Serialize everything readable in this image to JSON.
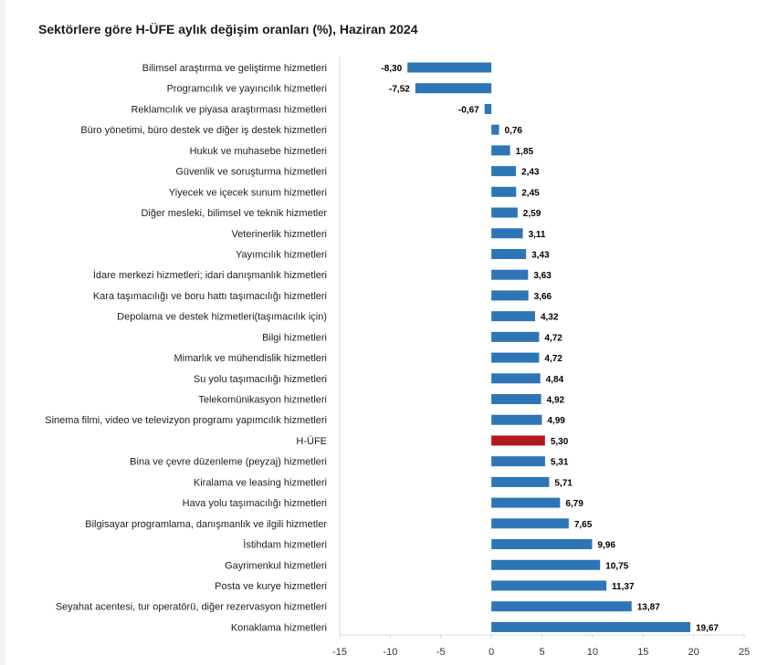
{
  "chart_data": {
    "type": "bar",
    "orientation": "horizontal",
    "title": "Sektörlere göre H-ÜFE aylık değişim oranları (%), Haziran 2024",
    "categories": [
      "Bilimsel araştırma ve geliştirme hizmetleri",
      "Programcılık ve yayıncılık hizmetleri",
      "Reklamcılık ve piyasa araştırması hizmetleri",
      "Büro yönetimi, büro destek ve diğer iş destek hizmetleri",
      "Hukuk ve muhasebe hizmetleri",
      "Güvenlik ve soruşturma hizmetleri",
      "Yiyecek ve içecek sunum hizmetleri",
      "Diğer mesleki, bilimsel ve teknik hizmetler",
      "Veterinerlik hizmetleri",
      "Yayımcılık hizmetleri",
      "İdare merkezi hizmetleri; idari danışmanlık hizmetleri",
      "Kara taşımacılığı ve boru hattı taşımacılığı hizmetleri",
      "Depolama ve destek hizmetleri(taşımacılık için)",
      "Bilgi hizmetleri",
      "Mimarlık ve mühendislik hizmetleri",
      "Su yolu taşımacılığı hizmetleri",
      "Telekomünikasyon hizmetleri",
      "Sinema filmi, video ve televizyon programı yapımcılık hizmetleri",
      "H-ÜFE",
      "Bina ve çevre düzenleme (peyzaj) hizmetleri",
      "Kiralama ve leasing hizmetleri",
      "Hava yolu taşımacılığı hizmetleri",
      "Bilgisayar programlama, danışmanlık ve ilgili hizmetler",
      "İstihdam hizmetleri",
      "Gayrimenkul hizmetleri",
      "Posta ve kurye hizmetleri",
      "Seyahat acentesi, tur operatörü, diğer rezervasyon hizmetleri",
      "Konaklama hizmetleri"
    ],
    "values": [
      -8.3,
      -7.52,
      -0.67,
      0.76,
      1.85,
      2.43,
      2.45,
      2.59,
      3.11,
      3.43,
      3.63,
      3.66,
      4.32,
      4.72,
      4.72,
      4.84,
      4.92,
      4.99,
      5.3,
      5.31,
      5.71,
      6.79,
      7.65,
      9.96,
      10.75,
      11.37,
      13.87,
      19.67
    ],
    "value_labels": [
      "-8,30",
      "-7,52",
      "-0,67",
      "0,76",
      "1,85",
      "2,43",
      "2,45",
      "2,59",
      "3,11",
      "3,43",
      "3,63",
      "3,66",
      "4,32",
      "4,72",
      "4,72",
      "4,84",
      "4,92",
      "4,99",
      "5,30",
      "5,31",
      "5,71",
      "6,79",
      "7,65",
      "9,96",
      "10,75",
      "11,37",
      "13,87",
      "19,67"
    ],
    "highlight_category": "H-ÜFE",
    "xlim": [
      -15,
      25
    ],
    "xticks": [
      -15,
      -10,
      -5,
      0,
      5,
      10,
      15,
      20,
      25
    ],
    "xlabel": "",
    "ylabel": "",
    "grid": false,
    "legend": "none",
    "colors": {
      "bar": "#2e75b6",
      "highlight": "#b0191e",
      "axis": "#d9d9d9"
    }
  }
}
